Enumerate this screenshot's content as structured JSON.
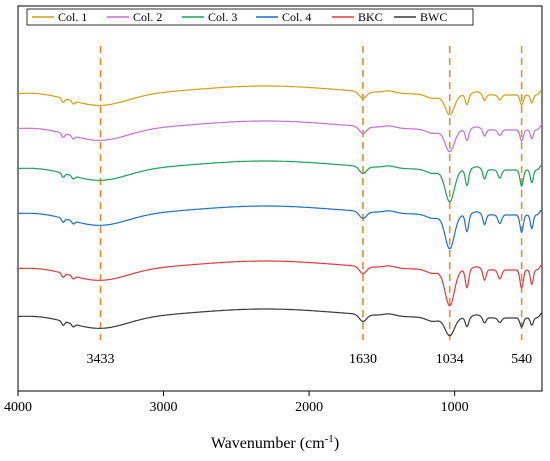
{
  "chart_data": {
    "type": "line",
    "xlabel_main": "Wavenumber (cm",
    "xlabel_sup": "-1",
    "xlabel_tail": ")",
    "x_ticks": [
      "4000",
      "3000",
      "2000",
      "1000"
    ],
    "xlim": [
      4000,
      400
    ],
    "x_reversed": true,
    "legend_position": "top",
    "peak_labels": [
      {
        "x": 3433,
        "label": "3433"
      },
      {
        "x": 1630,
        "label": "1630"
      },
      {
        "x": 1034,
        "label": "1034"
      },
      {
        "x": 540,
        "label": "540"
      }
    ],
    "series": [
      {
        "name": "Col. 1",
        "color": "#d4a010"
      },
      {
        "name": "Col. 2",
        "color": "#c86fd6"
      },
      {
        "name": "Col. 3",
        "color": "#1aa35a"
      },
      {
        "name": "Col. 4",
        "color": "#1e6fd0"
      },
      {
        "name": "BKC",
        "color": "#e8383d"
      },
      {
        "name": "BWC",
        "color": "#3a3a3a"
      }
    ],
    "guide_color": "#f08a24"
  }
}
